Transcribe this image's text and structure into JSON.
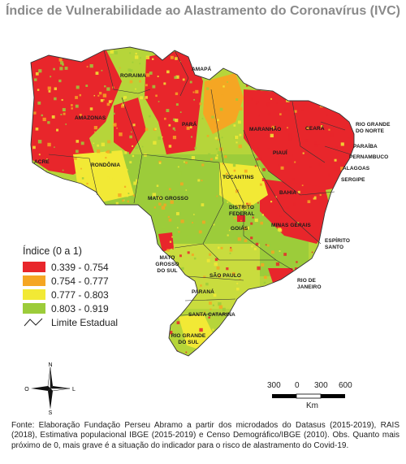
{
  "title": "Índice de Vulnerabilidade ao Alastramento do Coronavírus (IVC)",
  "states": {
    "roraima": "RORAIMA",
    "amapa": "AMAPÁ",
    "amazonas": "AMAZONAS",
    "para": "PARÁ",
    "acre": "ACRE",
    "rondonia": "RONDÔNIA",
    "maranhao": "MARANHÃO",
    "ceara": "CEARÁ",
    "rio_grande_do_norte": "RIO GRANDE DO NORTE",
    "paraiba": "PARAÍBA",
    "piaui": "PIAUÍ",
    "pernambuco": "PERNAMBUCO",
    "alagoas": "ALAGOAS",
    "sergipe": "SERGIPE",
    "tocantins": "TOCANTINS",
    "bahia": "BAHIA",
    "mato_grosso": "MATO GROSSO",
    "distrito_federal": "DISTRITO FEDERAL",
    "goias": "GOIÁS",
    "minas_gerais": "MINAS GERAIS",
    "espirito_santo": "ESPÍRITO SANTO",
    "mato_grosso_do_sul": "MATO GROSSO DO SUL",
    "sao_paulo": "SÃO PAULO",
    "rio_de_janeiro": "RIO DE JANEIRO",
    "parana": "PARANÁ",
    "santa_catarina": "SANTA CATARINA",
    "rio_grande_do_sul": "RIO GRANDE DO SUL"
  },
  "legend": {
    "title": "Índice (0 a 1)",
    "items": [
      {
        "label": "0.339 - 0.754",
        "color": "#e8262b"
      },
      {
        "label": "0.754 - 0.777",
        "color": "#f5a623"
      },
      {
        "label": "0.777 - 0.803",
        "color": "#f2e935"
      },
      {
        "label": "0.803 - 0.919",
        "color": "#9ccc3a"
      }
    ],
    "boundary_label": "Limite Estadual"
  },
  "compass": {
    "n": "N",
    "s": "S",
    "o": "O",
    "l": "L"
  },
  "scale": {
    "ticks": [
      "300",
      "0",
      "300",
      "600"
    ],
    "unit": "Km"
  },
  "footer": "Fonte: Elaboração Fundação Perseu Abramo a partir dos microdados do Datasus (2015-2019), RAIS (2018), Estimativa populacional IBGE (2015-2019) e Censo Demográfico/IBGE (2010). Obs. Quanto mais próximo de 0, mais grave é a situação do indicador para o risco de alastramento do Covid-19."
}
